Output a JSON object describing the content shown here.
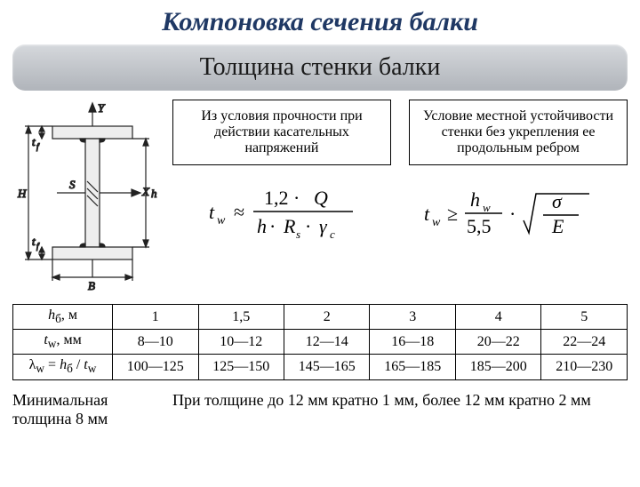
{
  "title": {
    "text": "Компоновка сечения балки",
    "color": "#1f3864",
    "fontsize": 30
  },
  "subtitle": {
    "text": "Толщина стенки балки",
    "bg_top": "#d5d8dc",
    "bg_bottom": "#b0b4ba",
    "color": "#1a1a1a",
    "fontsize": 28
  },
  "diagram": {
    "labels": {
      "Y": "Y",
      "X": "X",
      "S": "S",
      "H": "H",
      "h": "h",
      "B": "B",
      "tf": "t_f"
    },
    "stroke": "#222222",
    "fill_hatch": "#dcdcdc"
  },
  "condition1": {
    "text": "Из условия прочности при действии касательных напряжений",
    "formula": {
      "lhs": "t_w",
      "op": "≈",
      "num": "1,2 · Q",
      "den": "h · R_s · γ_c"
    }
  },
  "condition2": {
    "text": "Условие местной устойчивости стенки без укрепления ее продольным ребром",
    "formula": {
      "lhs": "t_w",
      "op": "≥",
      "num1": "h_w",
      "den1": "5,5",
      "sqrt_num": "σ",
      "sqrt_den": "E"
    }
  },
  "table": {
    "headers": [
      "h_б, м",
      "1",
      "1,5",
      "2",
      "3",
      "4",
      "5"
    ],
    "rows": [
      [
        "t_w, мм",
        "8—10",
        "10—12",
        "12—14",
        "16—18",
        "20—22",
        "22—24"
      ],
      [
        "λ_w = h_б / t_w",
        "100—125",
        "125—150",
        "145—165",
        "165—185",
        "185—200",
        "210—230"
      ]
    ],
    "border_color": "#000000",
    "fontsize": 16
  },
  "footer": {
    "min_thickness": "Минимальная толщина 8 мм",
    "rounding_rule": "При толщине до 12 мм кратно 1 мм, более 12 мм кратно 2 мм"
  }
}
